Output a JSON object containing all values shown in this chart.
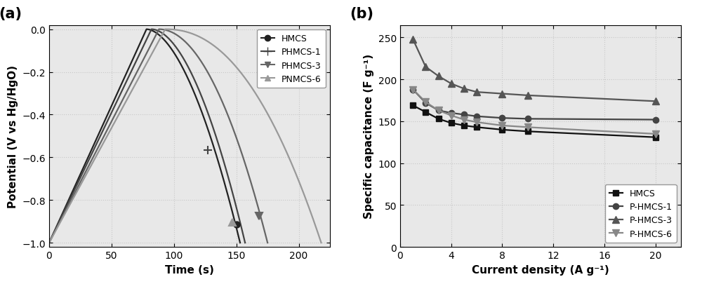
{
  "panel_a": {
    "title": "(a)",
    "xlabel": "Time (s)",
    "ylabel": "Potential (V vs Hg/HgO)",
    "xlim": [
      0,
      225
    ],
    "ylim": [
      -1.02,
      0.02
    ],
    "yticks": [
      0.0,
      -0.2,
      -0.4,
      -0.6,
      -0.8,
      -1.0
    ],
    "xticks": [
      0,
      50,
      100,
      150,
      200
    ],
    "series": [
      {
        "label": "HMCS",
        "color": "#222222",
        "linewidth": 1.6,
        "marker": "o",
        "markersize": 6,
        "marker_x": 150,
        "marker_y": -0.915,
        "charge_end": 78,
        "discharge_end": 153,
        "discharge_curve": 1.8
      },
      {
        "label": "PHMCS-1",
        "color": "#444444",
        "linewidth": 1.6,
        "marker": "+",
        "markersize": 9,
        "marker_x": 127,
        "marker_y": -0.565,
        "charge_end": 82,
        "discharge_end": 157,
        "discharge_curve": 1.85
      },
      {
        "label": "PHMCS-3",
        "color": "#666666",
        "linewidth": 1.6,
        "marker": "v",
        "markersize": 7,
        "marker_x": 168,
        "marker_y": -0.875,
        "charge_end": 88,
        "discharge_end": 175,
        "discharge_curve": 2.0
      },
      {
        "label": "PNMCS-6",
        "color": "#999999",
        "linewidth": 1.6,
        "marker": "^",
        "markersize": 7,
        "marker_x": 147,
        "marker_y": -0.905,
        "charge_end": 93,
        "discharge_end": 218,
        "discharge_curve": 2.2
      }
    ]
  },
  "panel_b": {
    "title": "(b)",
    "xlabel": "Current density (A g⁻¹)",
    "ylabel": "Specific capacitance (F g⁻¹)",
    "xlim": [
      0,
      22
    ],
    "ylim": [
      0,
      265
    ],
    "yticks": [
      0,
      50,
      100,
      150,
      200,
      250
    ],
    "xticks": [
      0,
      4,
      8,
      12,
      16,
      20
    ],
    "series": [
      {
        "label": "HMCS",
        "color": "#111111",
        "linewidth": 1.6,
        "marker": "s",
        "markersize": 6,
        "x": [
          1,
          2,
          3,
          4,
          5,
          6,
          8,
          10,
          20
        ],
        "y": [
          169,
          161,
          153,
          148,
          145,
          143,
          140,
          138,
          131
        ]
      },
      {
        "label": "P-HMCS-1",
        "color": "#444444",
        "linewidth": 1.6,
        "marker": "o",
        "markersize": 6,
        "x": [
          1,
          2,
          3,
          4,
          5,
          6,
          8,
          10,
          20
        ],
        "y": [
          188,
          172,
          163,
          160,
          158,
          156,
          154,
          153,
          152
        ]
      },
      {
        "label": "P-HMCS-3",
        "color": "#555555",
        "linewidth": 1.6,
        "marker": "^",
        "markersize": 7,
        "x": [
          1,
          2,
          3,
          4,
          5,
          6,
          8,
          10,
          20
        ],
        "y": [
          248,
          215,
          204,
          195,
          189,
          185,
          183,
          181,
          174
        ]
      },
      {
        "label": "P-HMCS-6",
        "color": "#888888",
        "linewidth": 1.6,
        "marker": "v",
        "markersize": 7,
        "x": [
          1,
          2,
          3,
          4,
          5,
          6,
          8,
          10,
          20
        ],
        "y": [
          188,
          173,
          163,
          157,
          152,
          149,
          145,
          143,
          135
        ]
      }
    ]
  },
  "bg_color": "#e8e8e8",
  "fig_facecolor": "#ffffff",
  "grid_color": "#c8c8c8",
  "grid_style": ":",
  "tick_labelsize": 10,
  "axis_labelsize": 11
}
